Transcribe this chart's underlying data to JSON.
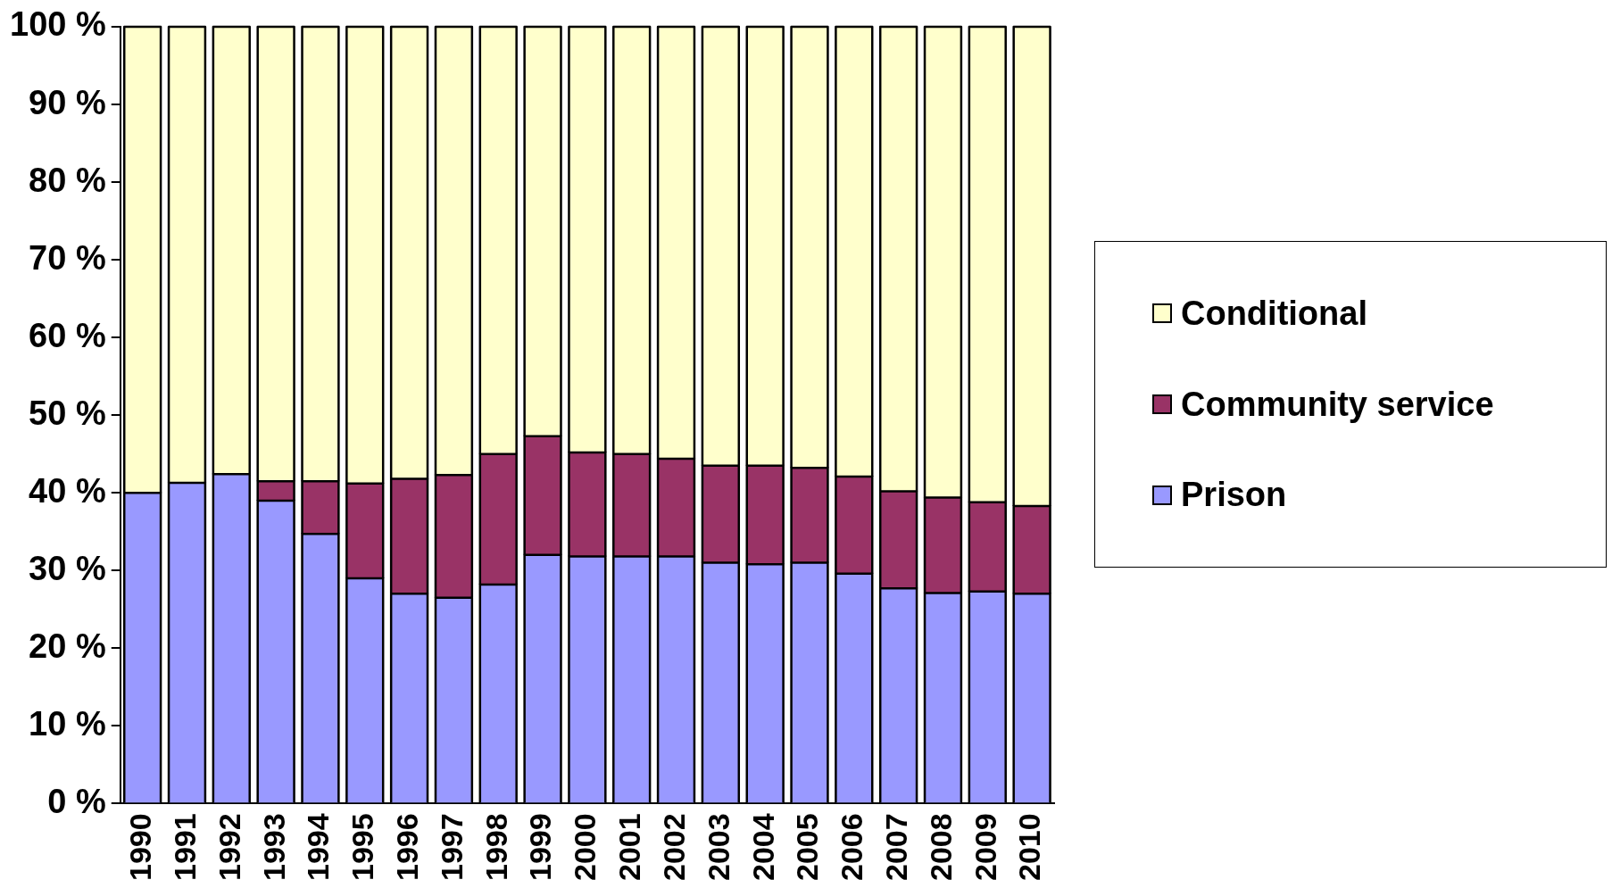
{
  "chart_data": {
    "type": "bar",
    "stacked": true,
    "categories": [
      "1990",
      "1991",
      "1992",
      "1993",
      "1994",
      "1995",
      "1996",
      "1997",
      "1998",
      "1999",
      "2000",
      "2001",
      "2002",
      "2003",
      "2004",
      "2005",
      "2006",
      "2007",
      "2008",
      "2009",
      "2010"
    ],
    "series": [
      {
        "name": "Prison",
        "color": "#9999ff",
        "values": [
          40,
          41.3,
          42.4,
          39,
          34.7,
          29,
          27,
          26.5,
          28.2,
          32,
          31.8,
          31.8,
          31.8,
          31,
          30.8,
          31,
          29.6,
          27.7,
          27.1,
          27.3,
          27
        ]
      },
      {
        "name": "Community service",
        "color": "#993366",
        "values": [
          0,
          0,
          0,
          2.5,
          6.8,
          12.2,
          14.8,
          15.8,
          16.8,
          15.3,
          13.4,
          13.2,
          12.6,
          12.5,
          12.7,
          12.2,
          12.5,
          12.5,
          12.3,
          11.5,
          11.3
        ]
      },
      {
        "name": "Conditional",
        "color": "#ffffcc",
        "values": [
          60,
          58.7,
          57.6,
          58.5,
          58.5,
          58.8,
          58.2,
          57.7,
          55,
          52.7,
          54.8,
          55,
          55.6,
          56.5,
          56.5,
          56.8,
          57.9,
          59.8,
          60.6,
          61.2,
          61.7
        ]
      }
    ],
    "ylim": [
      0,
      100
    ],
    "yticks": [
      {
        "value": 0,
        "label": "0 %"
      },
      {
        "value": 10,
        "label": "10 %"
      },
      {
        "value": 20,
        "label": "20 %"
      },
      {
        "value": 30,
        "label": "30 %"
      },
      {
        "value": 40,
        "label": "40 %"
      },
      {
        "value": 50,
        "label": "50 %"
      },
      {
        "value": 60,
        "label": "60 %"
      },
      {
        "value": 70,
        "label": "70 %"
      },
      {
        "value": 80,
        "label": "80 %"
      },
      {
        "value": 90,
        "label": "90 %"
      },
      {
        "value": 100,
        "label": "100 %"
      }
    ],
    "grid": false,
    "legend": "right"
  }
}
